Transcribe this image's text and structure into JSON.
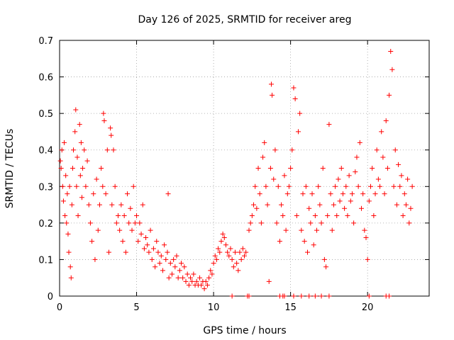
{
  "chart_data": {
    "type": "scatter",
    "title": "Day 126 of 2025, SRMTID for receiver areg",
    "xlabel": "GPS time / hours",
    "ylabel": "SRMTID / TECUs",
    "xlim": [
      0,
      24
    ],
    "ylim": [
      0,
      0.7
    ],
    "xticks": [
      0,
      5,
      10,
      15,
      20
    ],
    "xtick_labels": [
      "0",
      "5",
      "10",
      "15",
      "20"
    ],
    "yticks": [
      0,
      0.1,
      0.2,
      0.3,
      0.4,
      0.5,
      0.6,
      0.7
    ],
    "ytick_labels": [
      "0",
      "0.1",
      "0.2",
      "0.3",
      "0.4",
      "0.5",
      "0.6",
      "0.7"
    ],
    "grid": true,
    "marker": "+",
    "marker_color": "#ff0000",
    "series": [
      {
        "name": "SRMTID",
        "points": [
          [
            0.05,
            0.37
          ],
          [
            0.1,
            0.35
          ],
          [
            0.15,
            0.4
          ],
          [
            0.2,
            0.3
          ],
          [
            0.25,
            0.26
          ],
          [
            0.3,
            0.42
          ],
          [
            0.35,
            0.22
          ],
          [
            0.4,
            0.33
          ],
          [
            0.45,
            0.2
          ],
          [
            0.5,
            0.28
          ],
          [
            0.55,
            0.17
          ],
          [
            0.6,
            0.12
          ],
          [
            0.65,
            0.3
          ],
          [
            0.7,
            0.08
          ],
          [
            0.75,
            0.05
          ],
          [
            0.8,
            0.25
          ],
          [
            0.85,
            0.35
          ],
          [
            0.9,
            0.4
          ],
          [
            1.0,
            0.45
          ],
          [
            1.05,
            0.51
          ],
          [
            1.1,
            0.3
          ],
          [
            1.15,
            0.38
          ],
          [
            1.2,
            0.22
          ],
          [
            1.3,
            0.47
          ],
          [
            1.35,
            0.33
          ],
          [
            1.4,
            0.42
          ],
          [
            1.45,
            0.27
          ],
          [
            1.5,
            0.35
          ],
          [
            1.6,
            0.4
          ],
          [
            1.7,
            0.3
          ],
          [
            1.8,
            0.37
          ],
          [
            1.9,
            0.25
          ],
          [
            2.0,
            0.2
          ],
          [
            2.1,
            0.15
          ],
          [
            2.2,
            0.28
          ],
          [
            2.3,
            0.1
          ],
          [
            2.4,
            0.32
          ],
          [
            2.5,
            0.18
          ],
          [
            2.6,
            0.25
          ],
          [
            2.7,
            0.35
          ],
          [
            2.8,
            0.3
          ],
          [
            2.85,
            0.5
          ],
          [
            2.9,
            0.48
          ],
          [
            3.0,
            0.28
          ],
          [
            3.1,
            0.4
          ],
          [
            3.2,
            0.12
          ],
          [
            3.3,
            0.46
          ],
          [
            3.35,
            0.44
          ],
          [
            3.4,
            0.25
          ],
          [
            3.5,
            0.4
          ],
          [
            3.6,
            0.3
          ],
          [
            3.7,
            0.2
          ],
          [
            3.8,
            0.22
          ],
          [
            3.9,
            0.18
          ],
          [
            4.0,
            0.25
          ],
          [
            4.1,
            0.15
          ],
          [
            4.2,
            0.22
          ],
          [
            4.3,
            0.12
          ],
          [
            4.4,
            0.28
          ],
          [
            4.5,
            0.2
          ],
          [
            4.6,
            0.24
          ],
          [
            4.7,
            0.18
          ],
          [
            4.8,
            0.3
          ],
          [
            4.9,
            0.2
          ],
          [
            5.0,
            0.22
          ],
          [
            5.1,
            0.15
          ],
          [
            5.2,
            0.2
          ],
          [
            5.3,
            0.17
          ],
          [
            5.4,
            0.25
          ],
          [
            5.5,
            0.13
          ],
          [
            5.6,
            0.16
          ],
          [
            5.7,
            0.14
          ],
          [
            5.8,
            0.12
          ],
          [
            5.9,
            0.18
          ],
          [
            6.0,
            0.1
          ],
          [
            6.1,
            0.13
          ],
          [
            6.2,
            0.08
          ],
          [
            6.3,
            0.15
          ],
          [
            6.4,
            0.12
          ],
          [
            6.5,
            0.09
          ],
          [
            6.6,
            0.11
          ],
          [
            6.7,
            0.07
          ],
          [
            6.8,
            0.14
          ],
          [
            6.9,
            0.1
          ],
          [
            7.0,
            0.12
          ],
          [
            7.05,
            0.28
          ],
          [
            7.1,
            0.05
          ],
          [
            7.2,
            0.09
          ],
          [
            7.3,
            0.06
          ],
          [
            7.4,
            0.1
          ],
          [
            7.5,
            0.08
          ],
          [
            7.6,
            0.11
          ],
          [
            7.7,
            0.05
          ],
          [
            7.8,
            0.07
          ],
          [
            7.9,
            0.09
          ],
          [
            8.0,
            0.05
          ],
          [
            8.1,
            0.08
          ],
          [
            8.2,
            0.04
          ],
          [
            8.3,
            0.06
          ],
          [
            8.4,
            0.03
          ],
          [
            8.5,
            0.05
          ],
          [
            8.6,
            0.04
          ],
          [
            8.7,
            0.06
          ],
          [
            8.8,
            0.03
          ],
          [
            8.9,
            0.04
          ],
          [
            9.0,
            0.03
          ],
          [
            9.1,
            0.05
          ],
          [
            9.2,
            0.03
          ],
          [
            9.3,
            0.04
          ],
          [
            9.4,
            0.02
          ],
          [
            9.5,
            0.04
          ],
          [
            9.6,
            0.03
          ],
          [
            9.7,
            0.05
          ],
          [
            9.8,
            0.07
          ],
          [
            9.9,
            0.06
          ],
          [
            10.0,
            0.09
          ],
          [
            10.1,
            0.11
          ],
          [
            10.2,
            0.1
          ],
          [
            10.3,
            0.13
          ],
          [
            10.4,
            0.12
          ],
          [
            10.5,
            0.15
          ],
          [
            10.6,
            0.17
          ],
          [
            10.7,
            0.16
          ],
          [
            10.8,
            0.14
          ],
          [
            10.9,
            0.12
          ],
          [
            11.0,
            0.11
          ],
          [
            11.1,
            0.13
          ],
          [
            11.2,
            0.1
          ],
          [
            11.3,
            0.08
          ],
          [
            11.4,
            0.12
          ],
          [
            11.5,
            0.09
          ],
          [
            11.6,
            0.07
          ],
          [
            11.7,
            0.12
          ],
          [
            11.8,
            0.1
          ],
          [
            11.9,
            0.13
          ],
          [
            12.0,
            0.11
          ],
          [
            12.1,
            0.12
          ],
          [
            12.3,
            0.18
          ],
          [
            12.4,
            0.2
          ],
          [
            12.5,
            0.22
          ],
          [
            12.6,
            0.25
          ],
          [
            12.7,
            0.3
          ],
          [
            12.8,
            0.24
          ],
          [
            12.9,
            0.35
          ],
          [
            13.0,
            0.28
          ],
          [
            13.1,
            0.2
          ],
          [
            13.2,
            0.38
          ],
          [
            13.3,
            0.42
          ],
          [
            13.4,
            0.3
          ],
          [
            13.5,
            0.25
          ],
          [
            13.6,
            0.04
          ],
          [
            13.7,
            0.35
          ],
          [
            13.75,
            0.58
          ],
          [
            13.8,
            0.55
          ],
          [
            13.9,
            0.32
          ],
          [
            14.0,
            0.4
          ],
          [
            14.1,
            0.2
          ],
          [
            14.2,
            0.3
          ],
          [
            14.3,
            0.15
          ],
          [
            14.4,
            0.25
          ],
          [
            14.5,
            0.22
          ],
          [
            14.6,
            0.33
          ],
          [
            14.7,
            0.18
          ],
          [
            14.8,
            0.28
          ],
          [
            14.9,
            0.3
          ],
          [
            15.0,
            0.35
          ],
          [
            15.1,
            0.4
          ],
          [
            15.2,
            0.57
          ],
          [
            15.3,
            0.54
          ],
          [
            15.4,
            0.22
          ],
          [
            15.5,
            0.45
          ],
          [
            15.6,
            0.5
          ],
          [
            15.7,
            0.18
          ],
          [
            15.8,
            0.28
          ],
          [
            15.9,
            0.15
          ],
          [
            16.0,
            0.3
          ],
          [
            16.1,
            0.12
          ],
          [
            16.2,
            0.24
          ],
          [
            16.3,
            0.2
          ],
          [
            16.4,
            0.28
          ],
          [
            16.5,
            0.14
          ],
          [
            16.6,
            0.22
          ],
          [
            16.7,
            0.18
          ],
          [
            16.8,
            0.3
          ],
          [
            16.9,
            0.25
          ],
          [
            17.0,
            0.2
          ],
          [
            17.1,
            0.35
          ],
          [
            17.2,
            0.1
          ],
          [
            17.3,
            0.08
          ],
          [
            17.4,
            0.22
          ],
          [
            17.5,
            0.47
          ],
          [
            17.6,
            0.28
          ],
          [
            17.7,
            0.18
          ],
          [
            17.8,
            0.25
          ],
          [
            17.9,
            0.3
          ],
          [
            18.0,
            0.22
          ],
          [
            18.1,
            0.32
          ],
          [
            18.2,
            0.26
          ],
          [
            18.3,
            0.35
          ],
          [
            18.4,
            0.28
          ],
          [
            18.5,
            0.24
          ],
          [
            18.6,
            0.3
          ],
          [
            18.7,
            0.22
          ],
          [
            18.8,
            0.33
          ],
          [
            18.9,
            0.26
          ],
          [
            19.0,
            0.28
          ],
          [
            19.1,
            0.2
          ],
          [
            19.2,
            0.34
          ],
          [
            19.3,
            0.38
          ],
          [
            19.4,
            0.3
          ],
          [
            19.5,
            0.42
          ],
          [
            19.6,
            0.24
          ],
          [
            19.7,
            0.28
          ],
          [
            19.8,
            0.18
          ],
          [
            19.9,
            0.16
          ],
          [
            20.0,
            0.1
          ],
          [
            20.1,
            0.26
          ],
          [
            20.2,
            0.3
          ],
          [
            20.3,
            0.35
          ],
          [
            20.4,
            0.22
          ],
          [
            20.5,
            0.28
          ],
          [
            20.6,
            0.4
          ],
          [
            20.7,
            0.32
          ],
          [
            20.8,
            0.3
          ],
          [
            20.9,
            0.45
          ],
          [
            21.0,
            0.38
          ],
          [
            21.1,
            0.28
          ],
          [
            21.2,
            0.48
          ],
          [
            21.3,
            0.35
          ],
          [
            21.4,
            0.55
          ],
          [
            21.5,
            0.67
          ],
          [
            21.6,
            0.62
          ],
          [
            21.7,
            0.3
          ],
          [
            21.8,
            0.4
          ],
          [
            21.9,
            0.25
          ],
          [
            22.0,
            0.36
          ],
          [
            22.1,
            0.3
          ],
          [
            22.2,
            0.33
          ],
          [
            22.3,
            0.22
          ],
          [
            22.4,
            0.28
          ],
          [
            22.5,
            0.25
          ],
          [
            22.6,
            0.32
          ],
          [
            22.7,
            0.2
          ],
          [
            22.8,
            0.24
          ],
          [
            22.9,
            0.3
          ],
          [
            11.2,
            0.0
          ],
          [
            12.2,
            0.0
          ],
          [
            12.3,
            0.0
          ],
          [
            14.3,
            0.0
          ],
          [
            14.5,
            0.0
          ],
          [
            14.6,
            0.0
          ],
          [
            15.2,
            0.0
          ],
          [
            15.7,
            0.0
          ],
          [
            16.2,
            0.0
          ],
          [
            16.6,
            0.0
          ],
          [
            17.0,
            0.0
          ],
          [
            17.5,
            0.0
          ],
          [
            20.1,
            0.0
          ],
          [
            21.2,
            0.0
          ],
          [
            21.4,
            0.0
          ]
        ]
      }
    ]
  }
}
